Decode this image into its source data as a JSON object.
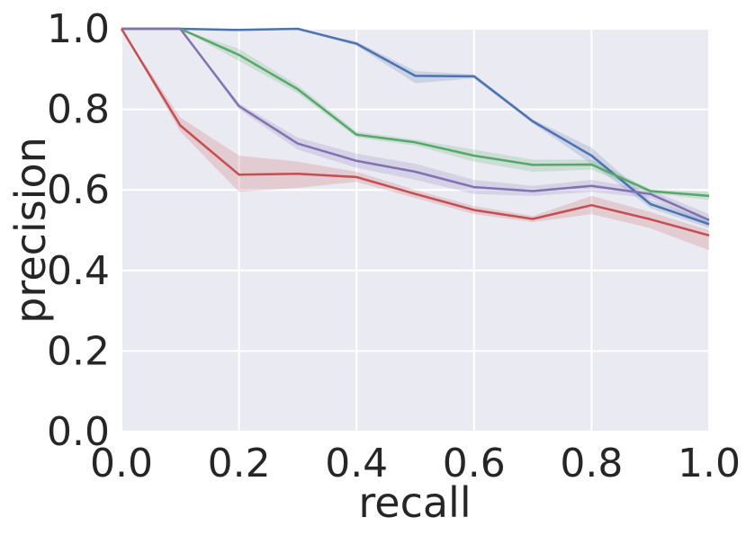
{
  "chart_data": {
    "type": "line",
    "title": "",
    "xlabel": "recall",
    "ylabel": "precision",
    "xlim": [
      0.0,
      1.0
    ],
    "ylim": [
      0.0,
      1.0
    ],
    "x_ticks": [
      "0.0",
      "0.2",
      "0.4",
      "0.6",
      "0.8",
      "1.0"
    ],
    "y_ticks": [
      "0.0",
      "0.2",
      "0.4",
      "0.6",
      "0.8",
      "1.0"
    ],
    "grid": true,
    "legend": "none",
    "background": "#eaeaf2",
    "x": [
      0.0,
      0.1,
      0.2,
      0.3,
      0.4,
      0.5,
      0.6,
      0.7,
      0.8,
      0.9,
      1.0
    ],
    "series": [
      {
        "color": "#4c72b0",
        "values": [
          1.0,
          1.0,
          0.997,
          1.0,
          0.963,
          0.883,
          0.882,
          0.77,
          0.685,
          0.565,
          0.515
        ],
        "lower": [
          1.0,
          1.0,
          0.995,
          0.998,
          0.958,
          0.865,
          0.877,
          0.765,
          0.665,
          0.555,
          0.505
        ],
        "upper": [
          1.0,
          1.0,
          1.0,
          1.0,
          0.968,
          0.895,
          0.887,
          0.775,
          0.705,
          0.575,
          0.525
        ]
      },
      {
        "color": "#55a868",
        "values": [
          1.0,
          1.0,
          0.935,
          0.85,
          0.737,
          0.718,
          0.685,
          0.662,
          0.663,
          0.597,
          0.585
        ],
        "lower": [
          1.0,
          1.0,
          0.92,
          0.84,
          0.73,
          0.71,
          0.67,
          0.645,
          0.65,
          0.592,
          0.575
        ],
        "upper": [
          1.0,
          1.0,
          0.95,
          0.86,
          0.745,
          0.725,
          0.7,
          0.675,
          0.675,
          0.602,
          0.595
        ]
      },
      {
        "color": "#8172b2",
        "values": [
          1.0,
          1.0,
          0.808,
          0.715,
          0.672,
          0.645,
          0.607,
          0.597,
          0.61,
          0.59,
          0.525
        ],
        "lower": [
          1.0,
          1.0,
          0.8,
          0.7,
          0.655,
          0.625,
          0.59,
          0.585,
          0.595,
          0.58,
          0.51
        ],
        "upper": [
          1.0,
          1.0,
          0.815,
          0.73,
          0.69,
          0.665,
          0.625,
          0.61,
          0.625,
          0.6,
          0.54
        ]
      },
      {
        "color": "#c44e52",
        "values": [
          1.0,
          0.76,
          0.638,
          0.64,
          0.632,
          0.59,
          0.55,
          0.528,
          0.562,
          0.527,
          0.487
        ],
        "lower": [
          1.0,
          0.745,
          0.595,
          0.605,
          0.62,
          0.58,
          0.54,
          0.52,
          0.54,
          0.505,
          0.45
        ],
        "upper": [
          1.0,
          0.78,
          0.685,
          0.67,
          0.645,
          0.6,
          0.56,
          0.535,
          0.585,
          0.545,
          0.5
        ]
      }
    ]
  }
}
